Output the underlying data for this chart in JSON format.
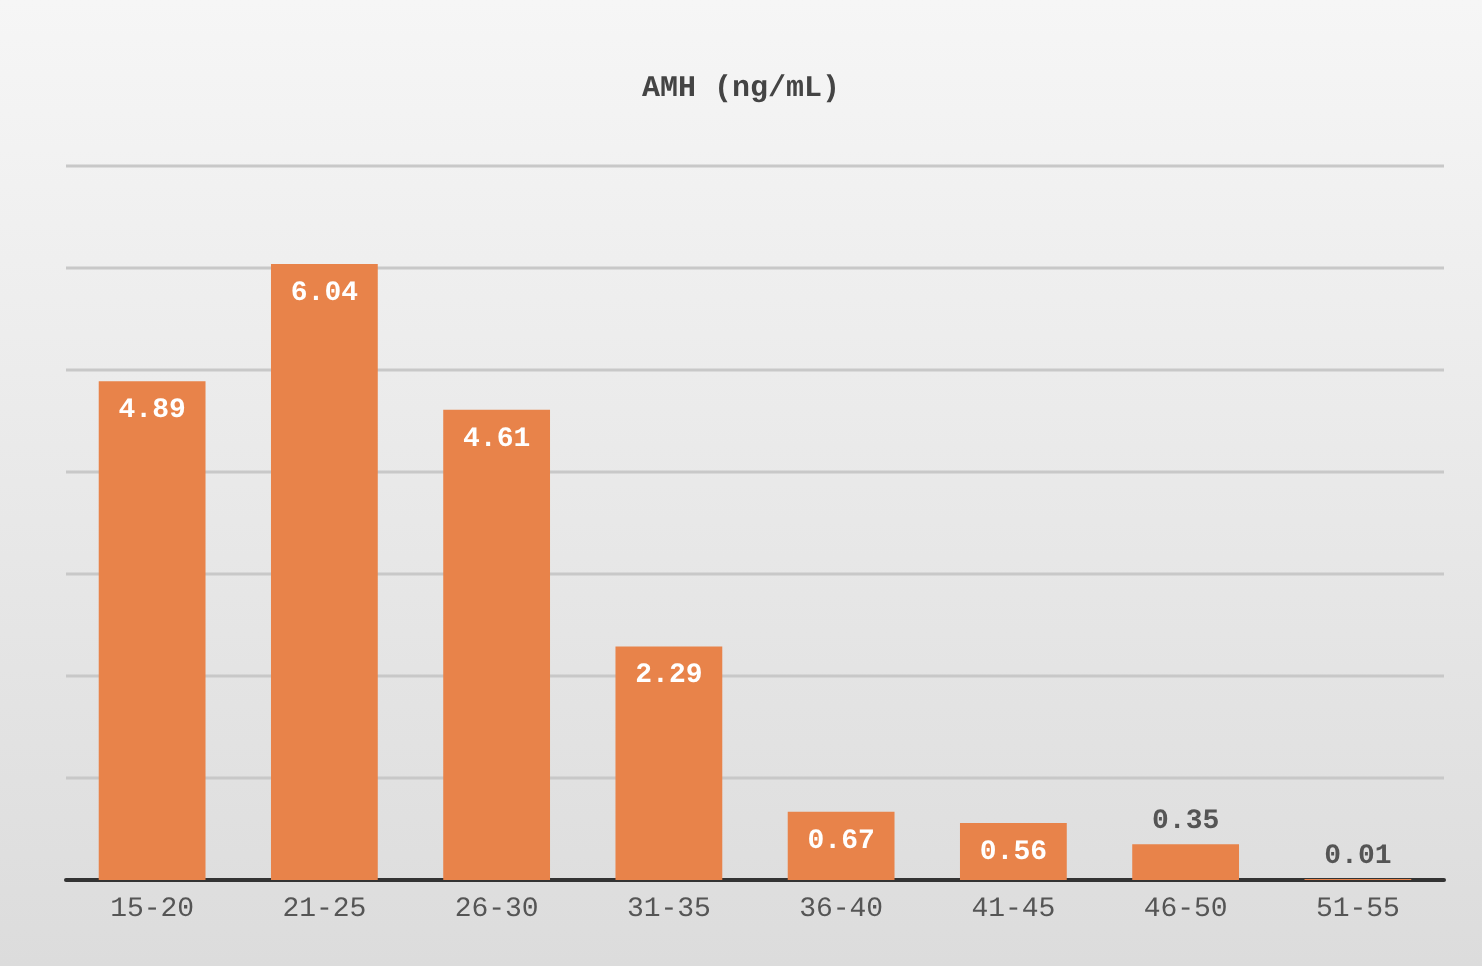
{
  "chart_data": {
    "type": "bar",
    "title": "AMH (ng/mL)",
    "categories": [
      "15-20",
      "21-25",
      "26-30",
      "31-35",
      "36-40",
      "41-45",
      "46-50",
      "51-55"
    ],
    "values": [
      4.89,
      6.04,
      4.61,
      2.29,
      0.67,
      0.56,
      0.35,
      0.01
    ],
    "color": "#e8834a",
    "ylim": [
      0,
      7
    ],
    "yticks": [
      {
        "value": 0,
        "label": null
      },
      {
        "value": 1,
        "label": null
      },
      {
        "value": 2,
        "label": null
      },
      {
        "value": 3,
        "label": null
      },
      {
        "value": 4,
        "label": null
      },
      {
        "value": 5,
        "label": null
      },
      {
        "value": 6,
        "label": null
      },
      {
        "value": 7,
        "label": null
      }
    ],
    "grid": "y",
    "data_labels": true,
    "tick_labels": "x"
  }
}
